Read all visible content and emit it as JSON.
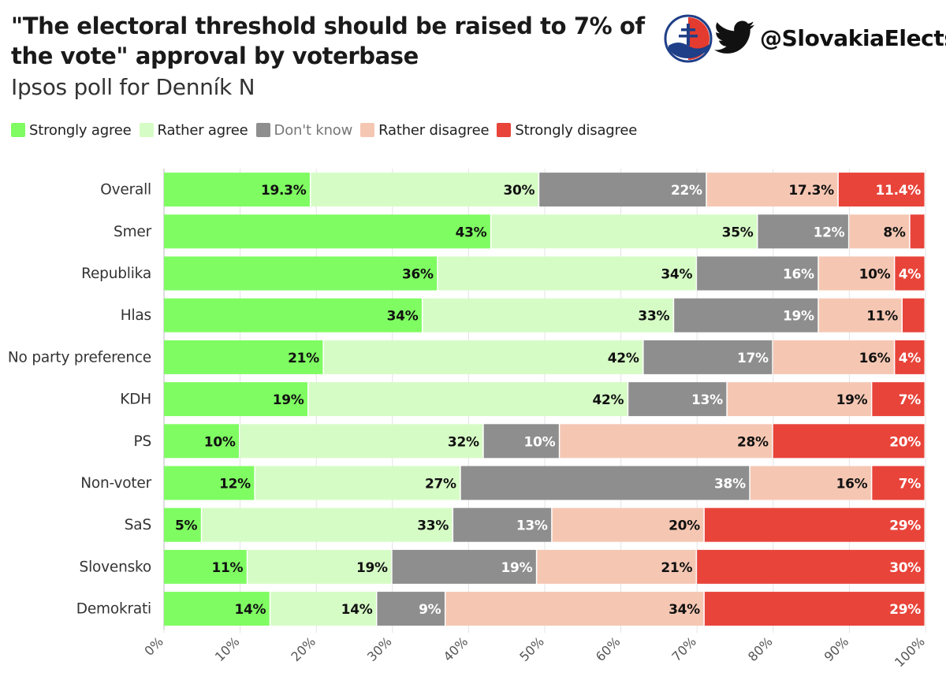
{
  "title": "\"The electoral threshold should be raised to 7% of the vote\" approval by voterbase",
  "subtitle": "Ipsos poll for Denník N",
  "brand": {
    "handle": "@SlovakiaElects",
    "logo_icon": "slovakia-elects-seal-icon",
    "social_icon": "twitter-bird-icon"
  },
  "colors": {
    "strongly_agree": "#7ffc62",
    "rather_agree": "#d6fcc6",
    "dont_know": "#8e8e8e",
    "rather_disagree": "#f5c7b3",
    "strongly_disagree": "#e8443a"
  },
  "chart_data": {
    "type": "bar",
    "orientation": "horizontal-stacked",
    "title": "\"The electoral threshold should be raised to 7% of the vote\" approval by voterbase",
    "subtitle": "Ipsos poll for Denník N",
    "categories": [
      "Overall",
      "Smer",
      "Republika",
      "Hlas",
      "No party preference",
      "KDH",
      "PS",
      "Non-voter",
      "SaS",
      "Slovensko",
      "Demokrati"
    ],
    "series": [
      {
        "name": "Strongly agree",
        "values": [
          19.3,
          43,
          36,
          34,
          21,
          19,
          10,
          12,
          5,
          11,
          14
        ],
        "labels": [
          "19.3%",
          "43%",
          "36%",
          "34%",
          "21%",
          "19%",
          "10%",
          "12%",
          "5%",
          "11%",
          "14%"
        ]
      },
      {
        "name": "Rather agree",
        "values": [
          30,
          35,
          34,
          33,
          42,
          42,
          32,
          27,
          33,
          19,
          14
        ],
        "labels": [
          "30%",
          "35%",
          "34%",
          "33%",
          "42%",
          "42%",
          "32%",
          "27%",
          "33%",
          "19%",
          "14%"
        ]
      },
      {
        "name": "Don't know",
        "values": [
          22,
          12,
          16,
          19,
          17,
          13,
          10,
          38,
          13,
          19,
          9
        ],
        "labels": [
          "22%",
          "12%",
          "16%",
          "19%",
          "17%",
          "13%",
          "10%",
          "38%",
          "13%",
          "19%",
          "9%"
        ]
      },
      {
        "name": "Rather disagree",
        "values": [
          17.3,
          8,
          10,
          11,
          16,
          19,
          28,
          16,
          20,
          21,
          34
        ],
        "labels": [
          "17.3%",
          "8%",
          "10%",
          "11%",
          "16%",
          "19%",
          "28%",
          "16%",
          "20%",
          "21%",
          "34%"
        ]
      },
      {
        "name": "Strongly disagree",
        "values": [
          11.4,
          2,
          4,
          3,
          4,
          7,
          20,
          7,
          29,
          30,
          29
        ],
        "labels": [
          "11.4%",
          "",
          "4%",
          "",
          "4%",
          "7%",
          "20%",
          "7%",
          "29%",
          "30%",
          "29%"
        ]
      }
    ],
    "xlim": [
      0,
      100
    ],
    "xticks": [
      "0%",
      "10%",
      "20%",
      "30%",
      "40%",
      "50%",
      "60%",
      "70%",
      "80%",
      "90%",
      "100%"
    ],
    "xlabel": "",
    "ylabel": "",
    "grid": true,
    "legend_position": "top-left"
  }
}
